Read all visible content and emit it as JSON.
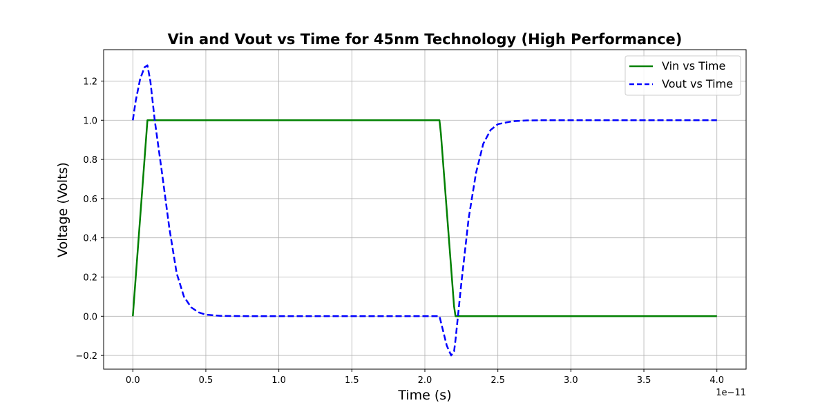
{
  "chart_data": {
    "type": "line",
    "title": "Vin and Vout vs Time for 45nm Technology (High Performance)",
    "xlabel": "Time (s)",
    "ylabel": "Voltage (Volts)",
    "x_offset_label": "1e−11",
    "xlim": [
      -2e-12,
      4.2e-11
    ],
    "ylim": [
      -0.27,
      1.36
    ],
    "x_ticks": [
      0,
      5e-12,
      1e-11,
      1.5e-11,
      2e-11,
      2.5e-11,
      3e-11,
      3.5e-11,
      4e-11
    ],
    "x_tick_labels": [
      "0.0",
      "0.5",
      "1.0",
      "1.5",
      "2.0",
      "2.5",
      "3.0",
      "3.5",
      "4.0"
    ],
    "y_ticks": [
      -0.2,
      0.0,
      0.2,
      0.4,
      0.6,
      0.8,
      1.0,
      1.2
    ],
    "y_tick_labels": [
      "−0.2",
      "0.0",
      "0.2",
      "0.4",
      "0.6",
      "0.8",
      "1.0",
      "1.2"
    ],
    "grid": true,
    "legend_position": "top-right",
    "series": [
      {
        "name": "Vin vs Time",
        "color": "#008000",
        "style": "solid",
        "x": [
          0,
          1e-12,
          2.1e-11,
          2.11e-11,
          2.2e-11,
          2.21e-11,
          4e-11
        ],
        "y": [
          0,
          1.0,
          1.0,
          0.93,
          0.05,
          0,
          0
        ]
      },
      {
        "name": "Vout vs Time",
        "color": "#0000ff",
        "style": "dashed",
        "x": [
          0,
          2e-13,
          5e-13,
          8e-13,
          1e-12,
          1.2e-12,
          1.5e-12,
          2e-12,
          2.5e-12,
          3e-12,
          3.5e-12,
          4e-12,
          4.5e-12,
          5e-12,
          6e-12,
          8e-12,
          1e-11,
          1.5e-11,
          2e-11,
          2.1e-11,
          2.12e-11,
          2.15e-11,
          2.18e-11,
          2.2e-11,
          2.21e-11,
          2.25e-11,
          2.3e-11,
          2.35e-11,
          2.4e-11,
          2.45e-11,
          2.5e-11,
          2.6e-11,
          2.7e-11,
          2.8e-11,
          3e-11,
          3.5e-11,
          4e-11
        ],
        "y": [
          1.0,
          1.1,
          1.21,
          1.27,
          1.28,
          1.2,
          1.0,
          0.73,
          0.45,
          0.22,
          0.1,
          0.045,
          0.02,
          0.008,
          0.002,
          0.0,
          0.0,
          0.0,
          0.0,
          0.0,
          -0.06,
          -0.15,
          -0.2,
          -0.18,
          -0.12,
          0.17,
          0.5,
          0.73,
          0.88,
          0.95,
          0.98,
          0.995,
          0.999,
          1.0,
          1.0,
          1.0,
          1.0
        ]
      }
    ]
  }
}
